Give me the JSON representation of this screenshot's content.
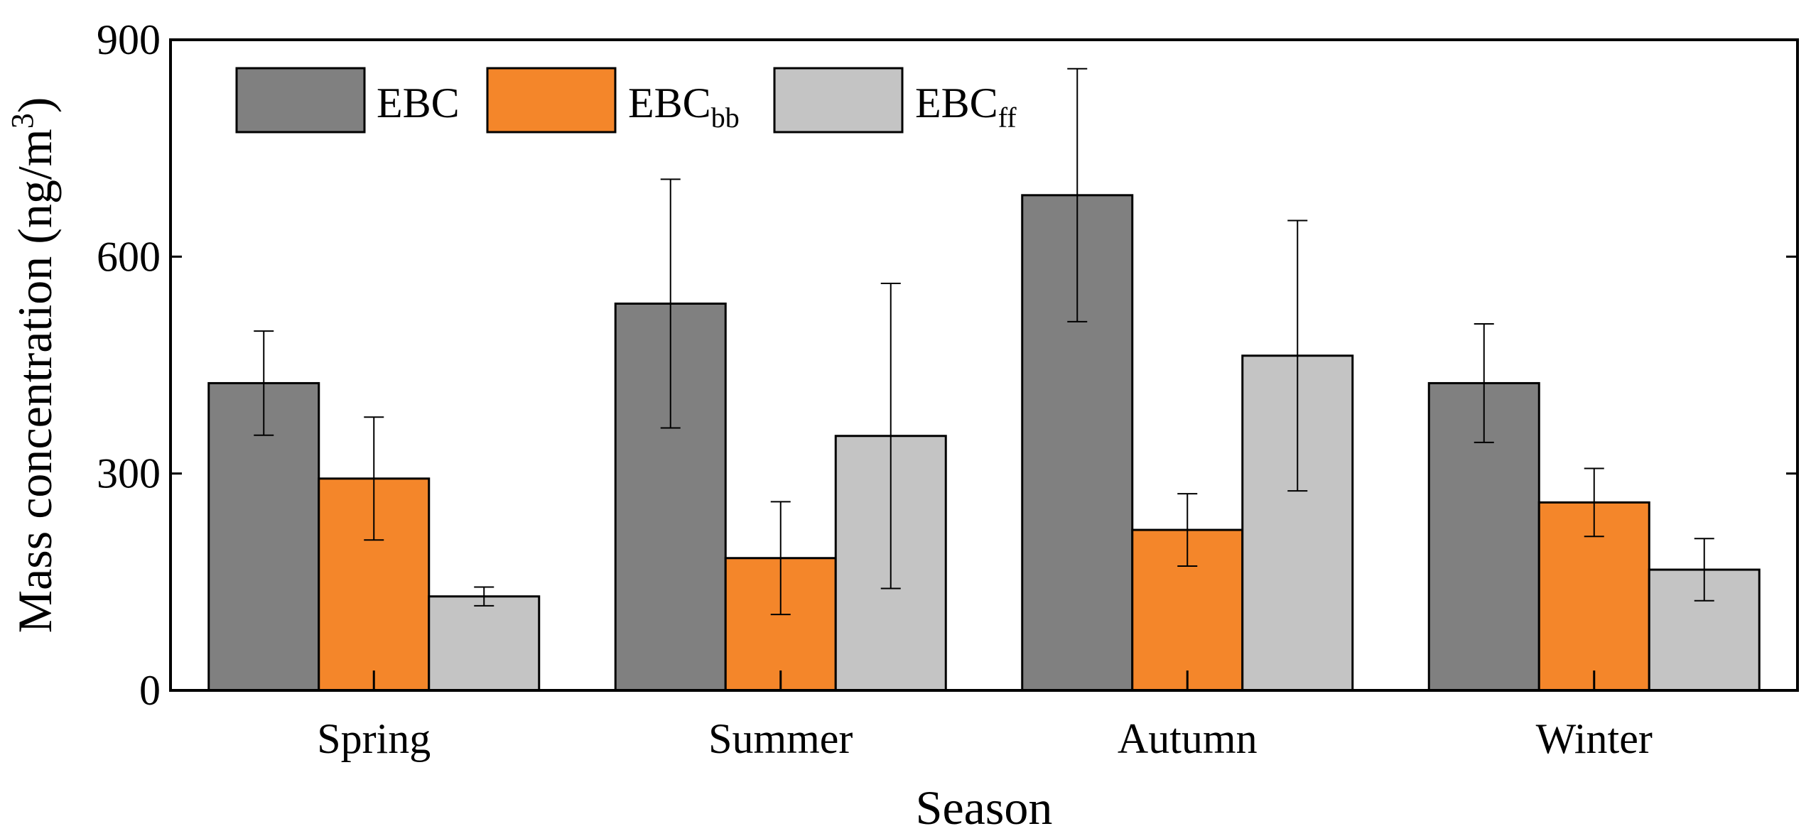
{
  "chart_data": {
    "type": "bar",
    "title": "",
    "xlabel": "Season",
    "ylabel": {
      "main": "Mass concentration (ng/m",
      "superscript": "3",
      "close": ")"
    },
    "categories": [
      "Spring",
      "Summer",
      "Autumn",
      "Winter"
    ],
    "ylim": [
      0,
      900
    ],
    "yticks": [
      "0",
      "300",
      "600",
      "900"
    ],
    "legend_position": "top-left",
    "series": [
      {
        "name": "EBC",
        "label_base": "EBC",
        "label_sub": "",
        "color": "#808080",
        "values": [
          425,
          535,
          685,
          425
        ],
        "errors": [
          72,
          172,
          175,
          82
        ]
      },
      {
        "name": "EBCbb",
        "label_base": "EBC",
        "label_sub": "bb",
        "color": "#F4862A",
        "values": [
          293,
          183,
          222,
          260
        ],
        "errors": [
          85,
          78,
          50,
          47
        ]
      },
      {
        "name": "EBCff",
        "label_base": "EBC",
        "label_sub": "ff",
        "color": "#C4C4C4",
        "values": [
          130,
          352,
          463,
          167
        ],
        "errors": [
          13,
          211,
          187,
          43
        ]
      }
    ]
  }
}
